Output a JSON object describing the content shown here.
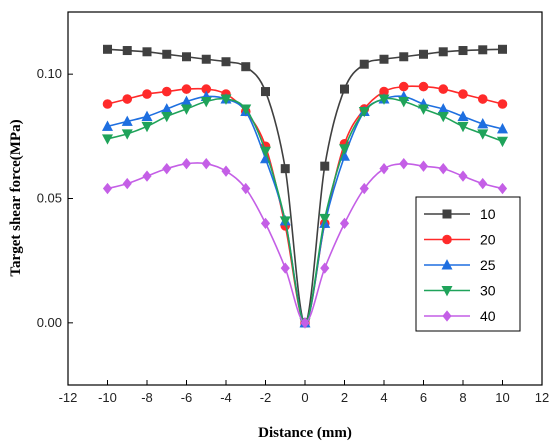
{
  "chart_data": {
    "type": "line",
    "xlabel": "Distance (mm)",
    "ylabel": "Target shear force(MPa)",
    "xlim": [
      -12,
      12
    ],
    "ylim": [
      -0.025,
      0.125
    ],
    "x_ticks": [
      "-12",
      "-10",
      "-8",
      "-6",
      "-4",
      "-2",
      "0",
      "2",
      "4",
      "6",
      "8",
      "10",
      "12"
    ],
    "y_ticks": [
      "0.00",
      "0.05",
      "0.10"
    ],
    "legend_position": "right-center",
    "series": [
      {
        "name": "10",
        "color": "#404040",
        "marker": "square",
        "x": [
          -10,
          -9,
          -8,
          -7,
          -6,
          -5,
          -4,
          -3,
          -2,
          -1,
          0,
          1,
          2,
          3,
          4,
          5,
          6,
          7,
          8,
          9,
          10
        ],
        "y": [
          0.11,
          0.1095,
          0.109,
          0.108,
          0.107,
          0.106,
          0.105,
          0.103,
          0.093,
          0.062,
          0.0,
          0.063,
          0.094,
          0.104,
          0.106,
          0.107,
          0.108,
          0.109,
          0.1095,
          0.1098,
          0.11
        ]
      },
      {
        "name": "20",
        "color": "#ff2a2a",
        "marker": "circle",
        "x": [
          -10,
          -9,
          -8,
          -7,
          -6,
          -5,
          -4,
          -3,
          -2,
          -1,
          0,
          1,
          2,
          3,
          4,
          5,
          6,
          7,
          8,
          9,
          10
        ],
        "y": [
          0.088,
          0.09,
          0.092,
          0.093,
          0.094,
          0.094,
          0.092,
          0.085,
          0.071,
          0.039,
          0.0,
          0.04,
          0.072,
          0.086,
          0.093,
          0.095,
          0.095,
          0.094,
          0.092,
          0.09,
          0.088
        ]
      },
      {
        "name": "25",
        "color": "#1e6fe0",
        "marker": "triangle-up",
        "x": [
          -10,
          -9,
          -8,
          -7,
          -6,
          -5,
          -4,
          -3,
          -2,
          -1,
          0,
          1,
          2,
          3,
          4,
          5,
          6,
          7,
          8,
          9,
          10
        ],
        "y": [
          0.079,
          0.081,
          0.083,
          0.086,
          0.089,
          0.091,
          0.09,
          0.085,
          0.066,
          0.041,
          0.0,
          0.04,
          0.067,
          0.085,
          0.09,
          0.091,
          0.088,
          0.086,
          0.083,
          0.08,
          0.078
        ]
      },
      {
        "name": "30",
        "color": "#1fa35a",
        "marker": "triangle-down",
        "x": [
          -10,
          -9,
          -8,
          -7,
          -6,
          -5,
          -4,
          -3,
          -2,
          -1,
          0,
          1,
          2,
          3,
          4,
          5,
          6,
          7,
          8,
          9,
          10
        ],
        "y": [
          0.074,
          0.076,
          0.079,
          0.083,
          0.086,
          0.089,
          0.09,
          0.086,
          0.069,
          0.041,
          0.0,
          0.042,
          0.07,
          0.085,
          0.09,
          0.089,
          0.086,
          0.083,
          0.079,
          0.076,
          0.073
        ]
      },
      {
        "name": "40",
        "color": "#c45fe6",
        "marker": "diamond",
        "x": [
          -10,
          -9,
          -8,
          -7,
          -6,
          -5,
          -4,
          -3,
          -2,
          -1,
          0,
          1,
          2,
          3,
          4,
          5,
          6,
          7,
          8,
          9,
          10
        ],
        "y": [
          0.054,
          0.056,
          0.059,
          0.062,
          0.064,
          0.064,
          0.061,
          0.054,
          0.04,
          0.022,
          0.0,
          0.022,
          0.04,
          0.054,
          0.062,
          0.064,
          0.063,
          0.062,
          0.059,
          0.056,
          0.054
        ]
      }
    ]
  }
}
